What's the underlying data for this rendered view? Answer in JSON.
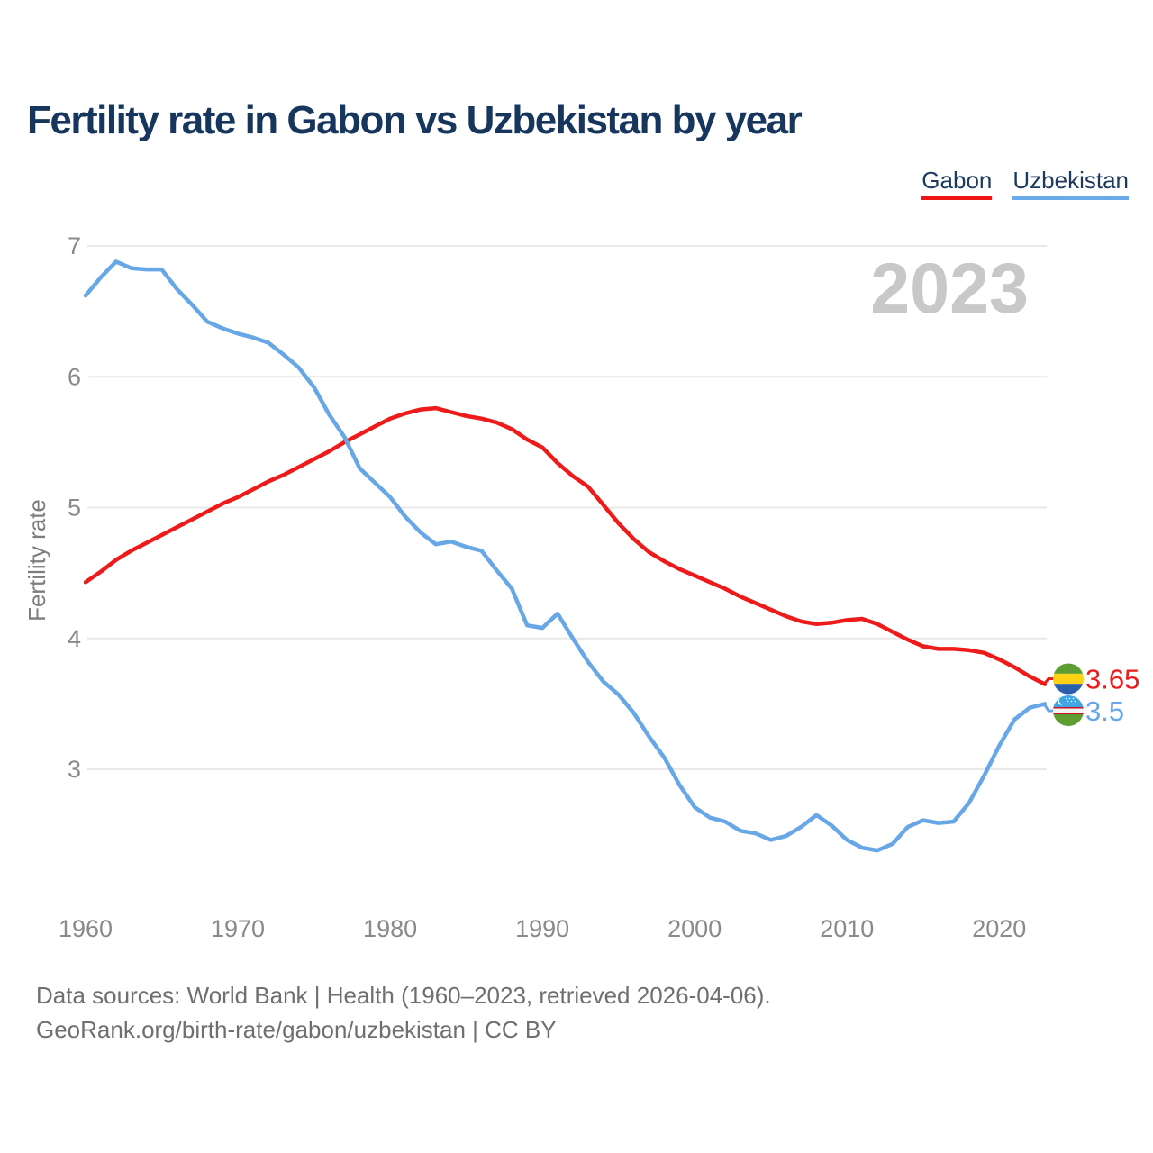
{
  "page": {
    "title": "Fertility rate in Gabon vs Uzbekistan by year",
    "watermark_year": "2023",
    "footer": {
      "line1": "Data sources: World Bank | Health (1960–2023, retrieved 2026-04-06).",
      "line2": "GeoRank.org/birth-rate/gabon/uzbekistan | CC BY"
    }
  },
  "legend": {
    "position": "top-right",
    "items": [
      {
        "label": "Gabon",
        "color": "#ee1515"
      },
      {
        "label": "Uzbekistan",
        "color": "#6aabe9"
      }
    ]
  },
  "colors": {
    "title_navy": "#17365d",
    "axis_text_gray": "#8a8a8a",
    "axis_title_gray": "#7d7d7d",
    "footer_gray": "#6f6f6f",
    "watermark_gray": "#c8c8c8",
    "gridline_gray": "#e9e9e9",
    "gabon_red": "#ee1b1b",
    "uzbekistan_blue": "#68a7e6"
  },
  "chart_data": {
    "type": "line",
    "title": "Fertility rate in Gabon vs Uzbekistan by year",
    "xlabel": "",
    "ylabel": "Fertility rate",
    "x_start": 1960,
    "x_end": 2023,
    "x_tick_labels": [
      "1960",
      "1970",
      "1980",
      "1990",
      "2000",
      "2010",
      "2020"
    ],
    "y_ticks": [
      7,
      6,
      5,
      4,
      3
    ],
    "ylim_labeled": [
      3,
      7
    ],
    "grid": "horizontal",
    "legend_position": "top-right",
    "watermark": "2023",
    "series": [
      {
        "name": "Gabon",
        "color": "#ee1b1b",
        "end_label": "3.65",
        "flag_icon": "gabon-flag-icon",
        "values": [
          4.43,
          4.51,
          4.6,
          4.67,
          4.73,
          4.79,
          4.85,
          4.91,
          4.97,
          5.03,
          5.08,
          5.14,
          5.2,
          5.25,
          5.31,
          5.37,
          5.43,
          5.5,
          5.56,
          5.62,
          5.68,
          5.72,
          5.75,
          5.76,
          5.73,
          5.7,
          5.68,
          5.65,
          5.6,
          5.52,
          5.46,
          5.34,
          5.24,
          5.16,
          5.02,
          4.88,
          4.76,
          4.66,
          4.59,
          4.53,
          4.48,
          4.43,
          4.38,
          4.32,
          4.27,
          4.22,
          4.17,
          4.13,
          4.11,
          4.12,
          4.14,
          4.15,
          4.11,
          4.05,
          3.99,
          3.94,
          3.92,
          3.92,
          3.91,
          3.89,
          3.84,
          3.78,
          3.71,
          3.65
        ]
      },
      {
        "name": "Uzbekistan",
        "color": "#68a7e6",
        "end_label": "3.5",
        "flag_icon": "uzbekistan-flag-icon",
        "values": [
          6.62,
          6.76,
          6.88,
          6.83,
          6.82,
          6.82,
          6.67,
          6.55,
          6.42,
          6.37,
          6.33,
          6.3,
          6.26,
          6.17,
          6.07,
          5.92,
          5.71,
          5.54,
          5.3,
          5.19,
          5.08,
          4.93,
          4.81,
          4.72,
          4.74,
          4.7,
          4.67,
          4.52,
          4.38,
          4.1,
          4.08,
          4.19,
          4.0,
          3.82,
          3.67,
          3.57,
          3.43,
          3.25,
          3.09,
          2.88,
          2.71,
          2.63,
          2.6,
          2.53,
          2.51,
          2.46,
          2.49,
          2.56,
          2.65,
          2.57,
          2.46,
          2.4,
          2.38,
          2.43,
          2.56,
          2.61,
          2.59,
          2.6,
          2.74,
          2.95,
          3.18,
          3.38,
          3.47,
          3.5
        ]
      }
    ]
  }
}
